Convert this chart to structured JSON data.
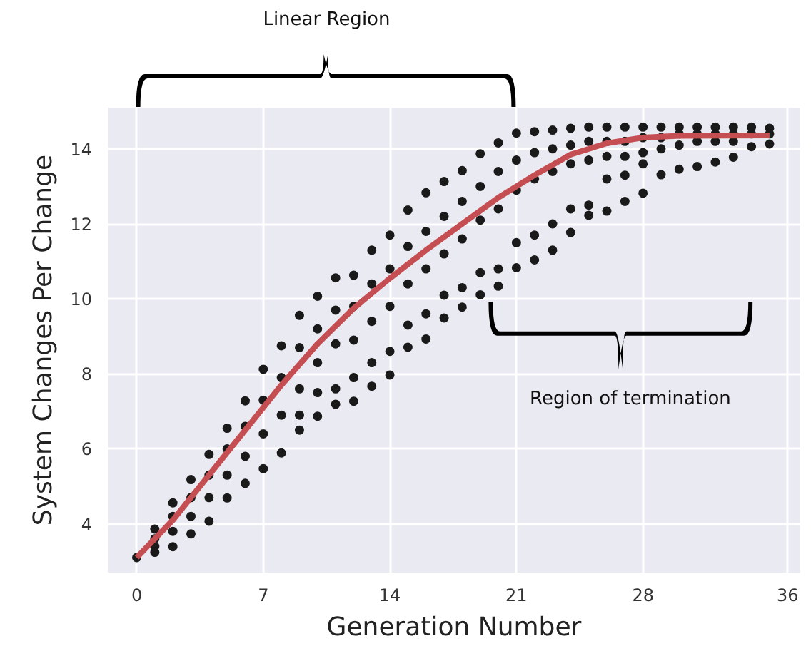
{
  "chart_data": {
    "type": "scatter",
    "xlabel": "Generation Number",
    "ylabel": "System Changes Per Change",
    "xlim": [
      -1.6,
      36.7
    ],
    "ylim": [
      2.7,
      15.1
    ],
    "xticks": [
      0,
      7,
      14,
      21,
      28,
      36
    ],
    "yticks": [
      4,
      6,
      8,
      10,
      12,
      14
    ],
    "grid": true,
    "annotations": [
      "Linear Region",
      "Region of termination"
    ],
    "series": [
      {
        "color": "#1a1a1a",
        "x": [
          0,
          1,
          1,
          1,
          1,
          2,
          2,
          2,
          2,
          3,
          3,
          3,
          3,
          4,
          4,
          4,
          4,
          5,
          5,
          5,
          5,
          6,
          6,
          6,
          6,
          7,
          7,
          7,
          7,
          8,
          8,
          8,
          8,
          9,
          9,
          9,
          9,
          9,
          10,
          10,
          10,
          10,
          10,
          11,
          11,
          11,
          11,
          11,
          12,
          12,
          12,
          12,
          12,
          13,
          13,
          13,
          13,
          13,
          14,
          14,
          14,
          14,
          14,
          15,
          15,
          15,
          15,
          15,
          16,
          16,
          16,
          16,
          16,
          17,
          17,
          17,
          17,
          17,
          18,
          18,
          18,
          18,
          18,
          19,
          19,
          19,
          19,
          19,
          20,
          20,
          20,
          20,
          20,
          21,
          21,
          21,
          21,
          21,
          22,
          22,
          22,
          22,
          22,
          23,
          23,
          23,
          23,
          23,
          24,
          24,
          24,
          24,
          24,
          25,
          25,
          25,
          25,
          25,
          26,
          26,
          26,
          26,
          26,
          27,
          27,
          27,
          27,
          27,
          28,
          28,
          28,
          28,
          28,
          29,
          29,
          29,
          29,
          30,
          30,
          30,
          30,
          31,
          31,
          31,
          31,
          32,
          32,
          32,
          32,
          33,
          33,
          33,
          33,
          34,
          34,
          34,
          35,
          35,
          35
        ],
        "values": [
          3.1,
          3.86,
          3.6,
          3.4,
          3.24,
          4.56,
          4.2,
          3.8,
          3.39,
          5.18,
          4.7,
          4.2,
          3.73,
          5.85,
          5.3,
          4.7,
          4.07,
          6.55,
          6.0,
          5.3,
          4.69,
          7.28,
          6.6,
          5.8,
          5.08,
          8.12,
          7.3,
          6.4,
          5.47,
          8.75,
          7.9,
          6.9,
          5.89,
          9.56,
          8.7,
          7.6,
          6.9,
          6.5,
          10.07,
          9.2,
          8.3,
          7.5,
          6.87,
          10.56,
          9.7,
          8.8,
          7.6,
          7.19,
          10.63,
          9.8,
          8.9,
          7.9,
          7.27,
          11.3,
          10.4,
          9.4,
          8.3,
          7.67,
          11.7,
          10.8,
          9.8,
          8.6,
          7.97,
          12.37,
          11.4,
          10.4,
          9.3,
          8.71,
          12.83,
          11.8,
          10.8,
          9.6,
          8.93,
          13.13,
          12.2,
          11.2,
          10.1,
          9.49,
          13.42,
          12.6,
          11.6,
          10.3,
          9.78,
          13.87,
          13.0,
          12.1,
          10.7,
          10.11,
          14.16,
          13.4,
          12.4,
          10.8,
          10.34,
          14.42,
          13.7,
          12.9,
          11.5,
          10.83,
          14.46,
          13.9,
          13.2,
          11.7,
          11.04,
          14.5,
          14.0,
          13.4,
          12.0,
          11.3,
          14.55,
          14.1,
          13.6,
          12.4,
          11.77,
          14.58,
          14.2,
          13.7,
          12.5,
          12.23,
          14.58,
          14.2,
          13.8,
          13.2,
          12.34,
          14.58,
          14.2,
          13.8,
          13.3,
          12.6,
          14.58,
          14.3,
          13.9,
          13.6,
          12.82,
          14.58,
          14.3,
          14.0,
          13.31,
          14.58,
          14.4,
          14.1,
          13.46,
          14.58,
          14.4,
          14.2,
          13.53,
          14.58,
          14.4,
          14.2,
          13.65,
          14.58,
          14.4,
          14.2,
          13.78,
          14.58,
          14.4,
          14.06,
          14.55,
          14.4,
          14.13
        ]
      },
      {
        "type": "line",
        "color": "#c44e52",
        "x": [
          0,
          2,
          4,
          6,
          8,
          10,
          12,
          14,
          16,
          18,
          20,
          22,
          24,
          26,
          28,
          30,
          35
        ],
        "values": [
          3.1,
          4.1,
          5.3,
          6.5,
          7.7,
          8.8,
          9.75,
          10.55,
          11.3,
          12.0,
          12.7,
          13.3,
          13.85,
          14.15,
          14.3,
          14.35,
          14.36
        ]
      }
    ]
  }
}
